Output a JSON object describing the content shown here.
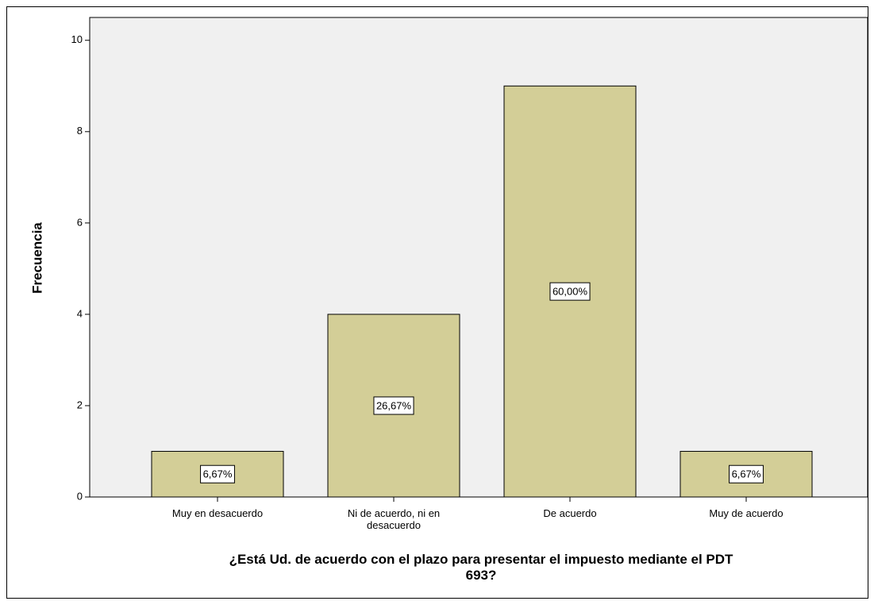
{
  "chart_data": {
    "type": "bar",
    "x_label": "¿Está Ud. de acuerdo con el plazo para presentar el impuesto mediante el PDT 693?",
    "y_label": "Frecuencia",
    "categories": [
      "Muy en desacuerdo",
      "Ni de acuerdo, ni en desacuerdo",
      "De acuerdo",
      "Muy de acuerdo"
    ],
    "values": [
      1,
      4,
      9,
      1
    ],
    "percent_labels": [
      {
        "value": 6.67,
        "label": "6,67%"
      },
      {
        "value": 26.67,
        "label": "26,67%"
      },
      {
        "value": 60,
        "label": "60,00%"
      },
      {
        "value": 6.67,
        "label": "6,67%"
      }
    ],
    "color": "#d3ce97",
    "ylim": [
      0,
      10.5
    ],
    "yticks": [
      0,
      2,
      4,
      6,
      8,
      10
    ],
    "grid": false
  }
}
